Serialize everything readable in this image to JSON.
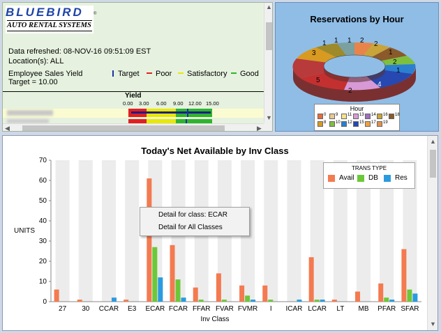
{
  "dashboard": {
    "logo": {
      "line1": "BLUEBIRD",
      "line2": "AUTO RENTAL SYSTEMS",
      "reg": "®"
    },
    "refreshed": "Data refreshed: 08-NOV-16 09:51:09 EST",
    "locations": "Location(s): ALL",
    "yield_title": "Employee Sales Yield",
    "target_text": "Target = 10.00",
    "legend": [
      {
        "label": "Target",
        "color": "#1c2fa6"
      },
      {
        "label": "Poor",
        "color": "#e02020"
      },
      {
        "label": "Satisfactory",
        "color": "#e8e800"
      },
      {
        "label": "Good",
        "color": "#2db52d"
      }
    ],
    "yield_header": "Yield",
    "yield_ticks": [
      "0.00",
      "3.00",
      "6.00",
      "9.00",
      "12.00",
      "15.00"
    ]
  },
  "donut": {
    "title": "Reservations by Hour",
    "legend_title": "Hour",
    "legend": [
      {
        "label": "0",
        "color": "#e46c3a"
      },
      {
        "label": "9",
        "color": "#e8c892"
      },
      {
        "label": "11",
        "color": "#f6e28c"
      },
      {
        "label": "13",
        "color": "#d79ad6"
      },
      {
        "label": "14",
        "color": "#9c6fbf"
      },
      {
        "label": "16",
        "color": "#c8a43a"
      },
      {
        "label": "18",
        "color": "#8a5a2a"
      },
      {
        "label": "8",
        "color": "#d89a20"
      },
      {
        "label": "10",
        "color": "#7fbf3f"
      },
      {
        "label": "12",
        "color": "#2a7fd0"
      },
      {
        "label": "15",
        "color": "#2648b0"
      },
      {
        "label": "17",
        "color": "#f0a040"
      },
      {
        "label": "19",
        "color": "#e09050"
      }
    ],
    "slice_labels": [
      "1",
      "2",
      "1",
      "1",
      "1",
      "2",
      "2",
      "1",
      "4",
      "2",
      "5",
      "3"
    ]
  },
  "context_menu": {
    "item1": "Detail for class: ECAR",
    "item2": "Detail for All Classes"
  },
  "chart_data": {
    "type": "bar",
    "title": "Today's Net Available by Inv Class",
    "xlabel": "Inv Class",
    "ylabel": "UNITS",
    "ylim": [
      0,
      70
    ],
    "yticks": [
      0,
      10,
      20,
      30,
      40,
      50,
      60,
      70
    ],
    "legend_title": "TRANS TYPE",
    "legend_position": "top-right",
    "categories": [
      "27",
      "30",
      "CCAR",
      "E3",
      "ECAR",
      "FCAR",
      "FFAR",
      "FVAR",
      "FVMR",
      "I",
      "ICAR",
      "LCAR",
      "LT",
      "MB",
      "PFAR",
      "SFAR"
    ],
    "series": [
      {
        "name": "Avail",
        "color": "#f47a50",
        "values": [
          6,
          1,
          0,
          1,
          61,
          28,
          7,
          14,
          8,
          8,
          0,
          22,
          1,
          5,
          9,
          26
        ]
      },
      {
        "name": "DB",
        "color": "#6cc838",
        "values": [
          0,
          0,
          0,
          0,
          27,
          11,
          1,
          1,
          3,
          1,
          0,
          1,
          0,
          0,
          2,
          6
        ]
      },
      {
        "name": "Res",
        "color": "#2b9be0",
        "values": [
          0,
          0,
          2,
          0,
          12,
          2,
          0,
          0,
          1,
          0,
          1,
          1,
          0,
          0,
          1,
          4
        ]
      }
    ]
  }
}
